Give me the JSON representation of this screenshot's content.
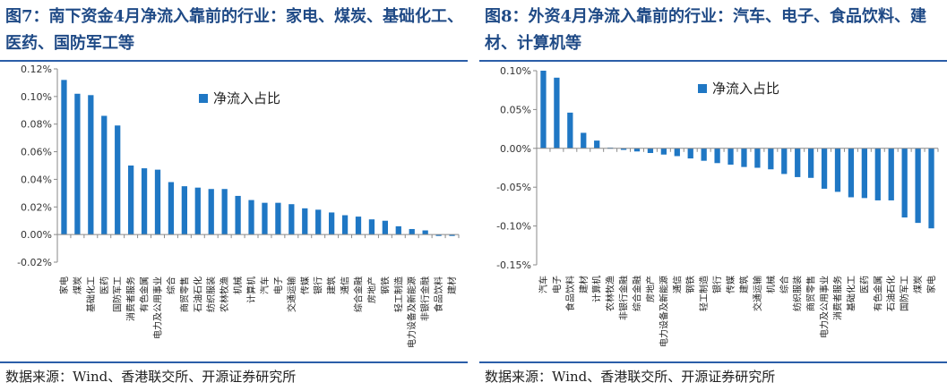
{
  "left": {
    "title": "图7：南下资金4月净流入靠前的行业：家电、煤炭、基础化工、医药、国防军工等",
    "source": "数据来源：Wind、香港联交所、开源证券研究所"
  },
  "right": {
    "title": "图8：外资4月净流入靠前的行业：汽车、电子、食品饮料、建材、计算机等",
    "source": "数据来源：Wind、香港联交所、开源证券研究所"
  },
  "chart_data": [
    {
      "type": "bar",
      "legend": "净流入占比",
      "legend_position": "top-center",
      "grid": false,
      "bar_color": "#1f77c4",
      "ylim": [
        -0.02,
        0.12
      ],
      "yticks": [
        -0.02,
        0.0,
        0.02,
        0.04,
        0.06,
        0.08,
        0.1,
        0.12
      ],
      "ytick_labels": [
        "-0.02%",
        "0.00%",
        "0.02%",
        "0.04%",
        "0.06%",
        "0.08%",
        "0.10%",
        "0.12%"
      ],
      "categories": [
        "家电",
        "煤炭",
        "基础化工",
        "医药",
        "国防军工",
        "消费者服务",
        "有色金属",
        "电力及公用事业",
        "综合",
        "商贸零售",
        "石油石化",
        "纺织服装",
        "农林牧渔",
        "机械",
        "计算机",
        "汽车",
        "电子",
        "交通运输",
        "传媒",
        "银行",
        "建筑",
        "通信",
        "综合金融",
        "房地产",
        "钢铁",
        "轻工制造",
        "电力设备及新能源",
        "非银行金融",
        "食品饮料",
        "建材"
      ],
      "values": [
        0.112,
        0.102,
        0.101,
        0.086,
        0.079,
        0.05,
        0.048,
        0.047,
        0.038,
        0.035,
        0.034,
        0.033,
        0.033,
        0.028,
        0.025,
        0.023,
        0.023,
        0.022,
        0.019,
        0.018,
        0.016,
        0.014,
        0.013,
        0.011,
        0.01,
        0.006,
        0.004,
        0.003,
        -0.001,
        -0.001
      ]
    },
    {
      "type": "bar",
      "legend": "净流入占比",
      "legend_position": "top-center",
      "grid": false,
      "bar_color": "#1f77c4",
      "ylim": [
        -0.15,
        0.1
      ],
      "yticks": [
        -0.15,
        -0.1,
        -0.05,
        0.0,
        0.05,
        0.1
      ],
      "ytick_labels": [
        "-0.15%",
        "-0.10%",
        "-0.05%",
        "0.00%",
        "0.05%",
        "0.10%"
      ],
      "categories": [
        "汽车",
        "电子",
        "食品饮料",
        "建材",
        "计算机",
        "农林牧渔",
        "非银行金融",
        "综合金融",
        "房地产",
        "电力设备及新能源",
        "通信",
        "钢铁",
        "轻工制造",
        "银行",
        "传媒",
        "建筑",
        "交通运输",
        "机械",
        "综合",
        "纺织服装",
        "商贸零售",
        "电力及公用事业",
        "消费者服务",
        "基础化工",
        "医药",
        "有色金属",
        "石油石化",
        "国防军工",
        "煤炭",
        "家电"
      ],
      "values": [
        0.1,
        0.091,
        0.046,
        0.02,
        0.01,
        0.001,
        -0.002,
        -0.004,
        -0.006,
        -0.008,
        -0.01,
        -0.013,
        -0.016,
        -0.019,
        -0.021,
        -0.024,
        -0.025,
        -0.027,
        -0.033,
        -0.037,
        -0.038,
        -0.052,
        -0.056,
        -0.063,
        -0.064,
        -0.067,
        -0.067,
        -0.089,
        -0.096,
        -0.103
      ]
    }
  ]
}
